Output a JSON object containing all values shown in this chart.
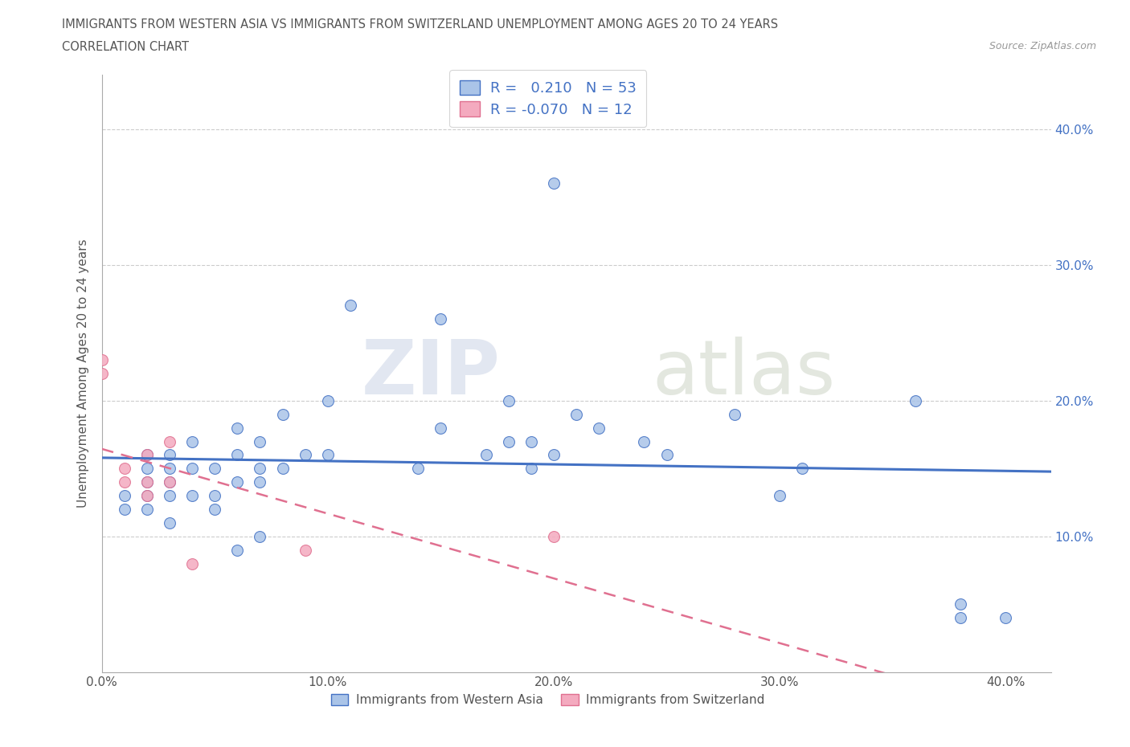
{
  "title_line1": "IMMIGRANTS FROM WESTERN ASIA VS IMMIGRANTS FROM SWITZERLAND UNEMPLOYMENT AMONG AGES 20 TO 24 YEARS",
  "title_line2": "CORRELATION CHART",
  "source_text": "Source: ZipAtlas.com",
  "ylabel": "Unemployment Among Ages 20 to 24 years",
  "xlim": [
    0.0,
    0.42
  ],
  "ylim": [
    0.0,
    0.44
  ],
  "xtick_labels": [
    "0.0%",
    "10.0%",
    "20.0%",
    "30.0%",
    "40.0%"
  ],
  "xtick_vals": [
    0.0,
    0.1,
    0.2,
    0.3,
    0.4
  ],
  "ytick_labels": [
    "10.0%",
    "20.0%",
    "30.0%",
    "40.0%"
  ],
  "ytick_vals": [
    0.1,
    0.2,
    0.3,
    0.4
  ],
  "western_asia_x": [
    0.01,
    0.01,
    0.02,
    0.02,
    0.02,
    0.02,
    0.02,
    0.03,
    0.03,
    0.03,
    0.03,
    0.03,
    0.04,
    0.04,
    0.04,
    0.05,
    0.05,
    0.05,
    0.06,
    0.06,
    0.06,
    0.06,
    0.07,
    0.07,
    0.07,
    0.07,
    0.08,
    0.08,
    0.09,
    0.1,
    0.1,
    0.11,
    0.14,
    0.15,
    0.15,
    0.17,
    0.18,
    0.18,
    0.19,
    0.19,
    0.2,
    0.2,
    0.21,
    0.22,
    0.24,
    0.25,
    0.28,
    0.3,
    0.31,
    0.36,
    0.38,
    0.38,
    0.4
  ],
  "western_asia_y": [
    0.12,
    0.13,
    0.12,
    0.13,
    0.14,
    0.15,
    0.16,
    0.11,
    0.13,
    0.14,
    0.15,
    0.16,
    0.13,
    0.15,
    0.17,
    0.12,
    0.13,
    0.15,
    0.09,
    0.14,
    0.16,
    0.18,
    0.1,
    0.14,
    0.15,
    0.17,
    0.15,
    0.19,
    0.16,
    0.16,
    0.2,
    0.27,
    0.15,
    0.18,
    0.26,
    0.16,
    0.17,
    0.2,
    0.15,
    0.17,
    0.16,
    0.36,
    0.19,
    0.18,
    0.17,
    0.16,
    0.19,
    0.13,
    0.15,
    0.2,
    0.04,
    0.05,
    0.04
  ],
  "switzerland_x": [
    0.0,
    0.0,
    0.01,
    0.01,
    0.02,
    0.02,
    0.02,
    0.03,
    0.03,
    0.04,
    0.09,
    0.2
  ],
  "switzerland_y": [
    0.22,
    0.23,
    0.14,
    0.15,
    0.13,
    0.14,
    0.16,
    0.14,
    0.17,
    0.08,
    0.09,
    0.1
  ],
  "r_western_asia": 0.21,
  "n_western_asia": 53,
  "r_switzerland": -0.07,
  "n_switzerland": 12,
  "color_western_asia": "#aac4e8",
  "color_switzerland": "#f4aabf",
  "line_color_western_asia": "#4472c4",
  "line_color_switzerland": "#e07090",
  "watermark_zip": "ZIP",
  "watermark_atlas": "atlas",
  "background_color": "#ffffff",
  "grid_color": "#cccccc"
}
